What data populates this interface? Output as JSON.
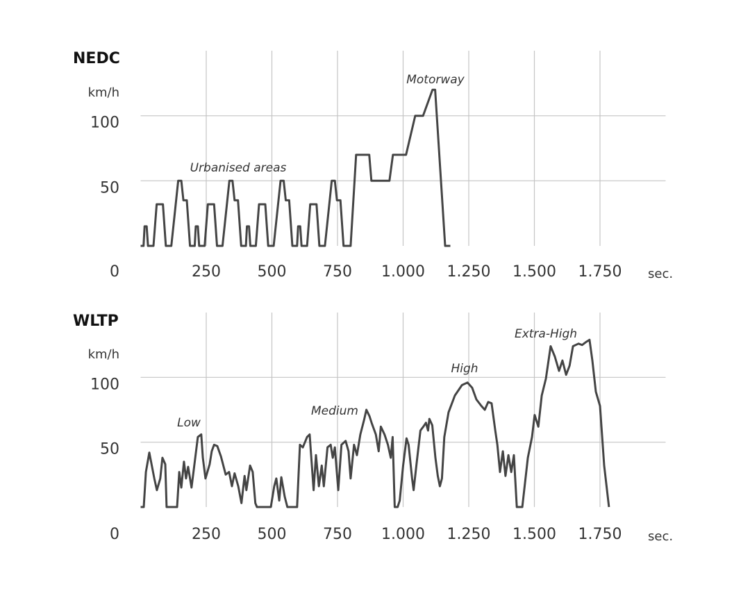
{
  "chart_data": [
    {
      "type": "line",
      "title": "NEDC",
      "y_label": "km/h",
      "x_label": "sec.",
      "annotations": [
        "Urbanised areas",
        "Motorway"
      ],
      "xlim": [
        0,
        2000
      ],
      "ylim": [
        0,
        150
      ],
      "xticks": [
        250,
        500,
        750,
        {
          "value": 1000,
          "label": "1.000"
        },
        {
          "value": 1250,
          "label": "1.250"
        },
        {
          "value": 1500,
          "label": "1.500"
        },
        {
          "value": 1750,
          "label": "1.750"
        }
      ],
      "yticks": [
        0,
        50,
        100
      ],
      "grid": true,
      "x": [
        0,
        11,
        15,
        23,
        28,
        49,
        61,
        85,
        96,
        117,
        143,
        155,
        163,
        176,
        188,
        195,
        206,
        210,
        218,
        223,
        244,
        256,
        280,
        291,
        312,
        338,
        350,
        358,
        371,
        383,
        390,
        401,
        405,
        413,
        418,
        439,
        451,
        475,
        486,
        507,
        533,
        545,
        553,
        566,
        578,
        585,
        596,
        600,
        608,
        613,
        634,
        646,
        670,
        681,
        702,
        728,
        740,
        748,
        761,
        773,
        780,
        800,
        821,
        871,
        879,
        948,
        961,
        1011,
        1046,
        1076,
        1112,
        1122,
        1160,
        1180
      ],
      "series": [
        {
          "color": "#444444",
          "values": [
            0,
            0,
            15,
            15,
            0,
            0,
            32,
            32,
            0,
            0,
            50,
            50,
            35,
            35,
            0,
            0,
            0,
            15,
            15,
            0,
            0,
            32,
            32,
            0,
            0,
            50,
            50,
            35,
            35,
            0,
            0,
            0,
            15,
            15,
            0,
            0,
            32,
            32,
            0,
            0,
            50,
            50,
            35,
            35,
            0,
            0,
            0,
            15,
            15,
            0,
            0,
            32,
            32,
            0,
            0,
            50,
            50,
            35,
            35,
            0,
            0,
            0,
            70,
            70,
            50,
            50,
            70,
            70,
            100,
            100,
            120,
            120,
            0,
            0
          ]
        }
      ]
    },
    {
      "type": "line",
      "title": "WLTP",
      "y_label": "km/h",
      "x_label": "sec.",
      "annotations": [
        "Low",
        "Medium",
        "High",
        "Extra-High"
      ],
      "xlim": [
        0,
        2000
      ],
      "ylim": [
        0,
        150
      ],
      "xticks": [
        250,
        500,
        750,
        {
          "value": 1000,
          "label": "1.000"
        },
        {
          "value": 1250,
          "label": "1.250"
        },
        {
          "value": 1500,
          "label": "1.500"
        },
        {
          "value": 1750,
          "label": "1.750"
        }
      ],
      "yticks": [
        0,
        50,
        100
      ],
      "grid": true,
      "x": [
        0,
        12,
        20,
        33,
        52,
        62,
        75,
        83,
        94,
        99,
        139,
        147,
        155,
        165,
        173,
        181,
        194,
        218,
        231,
        237,
        247,
        263,
        271,
        280,
        292,
        306,
        324,
        337,
        348,
        358,
        372,
        384,
        396,
        403,
        417,
        427,
        437,
        443,
        496,
        509,
        517,
        528,
        536,
        549,
        559,
        596,
        607,
        618,
        634,
        644,
        659,
        668,
        679,
        690,
        698,
        712,
        724,
        732,
        740,
        753,
        765,
        781,
        792,
        800,
        813,
        824,
        837,
        851,
        860,
        872,
        880,
        896,
        907,
        915,
        929,
        942,
        953,
        960,
        968,
        979,
        987,
        1000,
        1013,
        1021,
        1034,
        1040,
        1052,
        1066,
        1077,
        1087,
        1095,
        1100,
        1111,
        1123,
        1132,
        1140,
        1148,
        1157,
        1173,
        1197,
        1224,
        1245,
        1263,
        1279,
        1298,
        1311,
        1324,
        1337,
        1351,
        1359,
        1369,
        1380,
        1390,
        1401,
        1412,
        1422,
        1433,
        1454,
        1475,
        1491,
        1501,
        1515,
        1528,
        1544,
        1562,
        1578,
        1594,
        1607,
        1621,
        1634,
        1647,
        1668,
        1682,
        1695,
        1710,
        1721,
        1734,
        1750,
        1766,
        1784
      ],
      "series": [
        {
          "color": "#444444",
          "values": [
            0,
            0,
            27,
            42,
            22,
            13,
            22,
            38,
            33,
            0,
            0,
            27,
            15,
            35,
            22,
            31,
            15,
            54,
            56,
            38,
            22,
            33,
            43,
            48,
            47,
            39,
            25,
            27,
            16,
            26,
            16,
            3,
            24,
            13,
            32,
            27,
            3,
            0,
            0,
            16,
            22,
            5,
            23,
            8,
            0,
            0,
            48,
            46,
            54,
            56,
            13,
            40,
            16,
            32,
            16,
            46,
            48,
            38,
            46,
            13,
            48,
            51,
            43,
            22,
            48,
            40,
            56,
            67,
            75,
            70,
            65,
            56,
            43,
            62,
            56,
            48,
            38,
            54,
            0,
            0,
            5,
            32,
            53,
            48,
            22,
            13,
            35,
            59,
            62,
            65,
            59,
            68,
            63,
            38,
            24,
            16,
            22,
            54,
            73,
            86,
            94,
            96,
            92,
            83,
            78,
            75,
            81,
            80,
            59,
            48,
            27,
            43,
            24,
            40,
            27,
            40,
            0,
            0,
            38,
            54,
            71,
            62,
            86,
            99,
            124,
            116,
            105,
            113,
            102,
            109,
            124,
            126,
            125,
            127,
            129,
            113,
            89,
            78,
            32,
            0
          ]
        }
      ]
    }
  ]
}
